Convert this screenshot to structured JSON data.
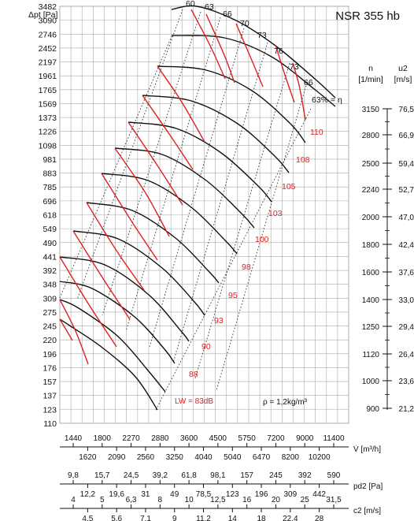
{
  "chart_data": {
    "type": "line",
    "title": "NSR 355 hb",
    "ylabel_main": "Δpt [Pa]",
    "y_ticks": [
      "3482",
      "3090",
      "2746",
      "2452",
      "2197",
      "1961",
      "1765",
      "1569",
      "1373",
      "1226",
      "1098",
      "981",
      "883",
      "785",
      "696",
      "618",
      "549",
      "490",
      "441",
      "392",
      "348",
      "309",
      "275",
      "245",
      "220",
      "196",
      "176",
      "157",
      "137",
      "123",
      "110"
    ],
    "speed_axis": {
      "label_n": "n",
      "unit_n": "[1/min]",
      "label_u2": "u2",
      "unit_u2": "[m/s]",
      "n_values": [
        "3150",
        "2800",
        "2500",
        "2240",
        "2000",
        "1800",
        "1600",
        "1400",
        "1250",
        "1120",
        "1000",
        "900"
      ],
      "u2_values": [
        "76,5",
        "66,9",
        "59,4",
        "52,7",
        "47,0",
        "42,4",
        "37,6",
        "33,0",
        "29,4",
        "26,4",
        "23,6",
        "21,2"
      ]
    },
    "efficiency_labels": [
      "60",
      "63",
      "66",
      "70",
      "73",
      "76",
      "73",
      "66"
    ],
    "efficiency_end_label": "63% = η",
    "noise_labels": [
      "110",
      "108",
      "105",
      "103",
      "100",
      "98",
      "95",
      "93",
      "90",
      "88"
    ],
    "noise_start_label": "LW = 83dB",
    "density_note": "ρ = 1,2kg/m³",
    "flow_axis": {
      "label": "V̇ [m³/h]",
      "upper": [
        "1440",
        "1800",
        "2270",
        "2880",
        "3600",
        "4500",
        "5750",
        "7200",
        "9000",
        "11400"
      ],
      "lower": [
        "1620",
        "2090",
        "2560",
        "3250",
        "4040",
        "5040",
        "6470",
        "8200",
        "10200"
      ]
    },
    "pd2_axis": {
      "label": "pd2 [Pa]",
      "upper": [
        "9,8",
        "15,7",
        "24,5",
        "39,2",
        "61,8",
        "98,1",
        "157",
        "245",
        "392",
        "590"
      ],
      "lower": [
        "12,2",
        "19,6",
        "31",
        "49",
        "78,5",
        "123",
        "196",
        "309",
        "442"
      ]
    },
    "c2_axis": {
      "label": "c2 [m/s]",
      "upper": [
        "4",
        "5",
        "6,3",
        "8",
        "10",
        "12,5",
        "16",
        "20",
        "25",
        "31,5"
      ],
      "lower": [
        "4,5",
        "5,6",
        "7,1",
        "9",
        "11,2",
        "14",
        "18",
        "22,4",
        "28"
      ]
    }
  }
}
